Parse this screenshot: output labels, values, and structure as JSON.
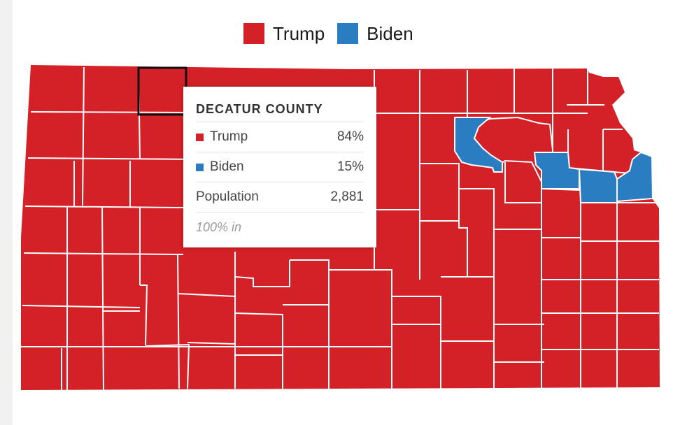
{
  "colors": {
    "trump": "#d42027",
    "biden": "#2b7dc1",
    "border": "#ffffff",
    "highlight": "#111111"
  },
  "legend": [
    {
      "label": "Trump",
      "color": "#d42027"
    },
    {
      "label": "Biden",
      "color": "#2b7dc1"
    }
  ],
  "tooltip": {
    "county": "DECATUR COUNTY",
    "rows": [
      {
        "label": "Trump",
        "value": "84%",
        "color": "#d42027"
      },
      {
        "label": "Biden",
        "value": "15%",
        "color": "#2b7dc1"
      },
      {
        "label": "Population",
        "value": "2,881"
      }
    ],
    "footer": "100% in"
  }
}
